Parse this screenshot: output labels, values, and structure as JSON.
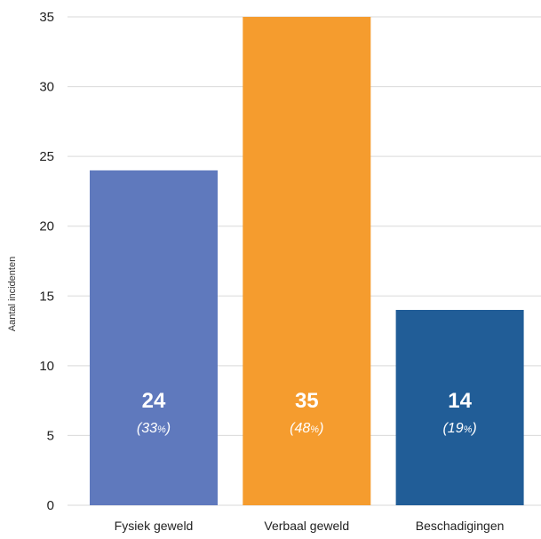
{
  "chart_data": {
    "type": "bar",
    "title": "",
    "xlabel": "",
    "ylabel": "Aantal incidenten",
    "ylim": [
      0,
      35
    ],
    "yticks": [
      0,
      5,
      10,
      15,
      20,
      25,
      30,
      35
    ],
    "grid": true,
    "categories": [
      "Fysiek geweld",
      "Verbaal geweld",
      "Beschadigingen"
    ],
    "values": [
      24,
      35,
      14
    ],
    "percentages": [
      "33",
      "48",
      "19"
    ],
    "percent_sign": "%",
    "colors": [
      "#5f79bd",
      "#f59c2e",
      "#215d97"
    ],
    "grid_color": "#d9d9d9"
  }
}
